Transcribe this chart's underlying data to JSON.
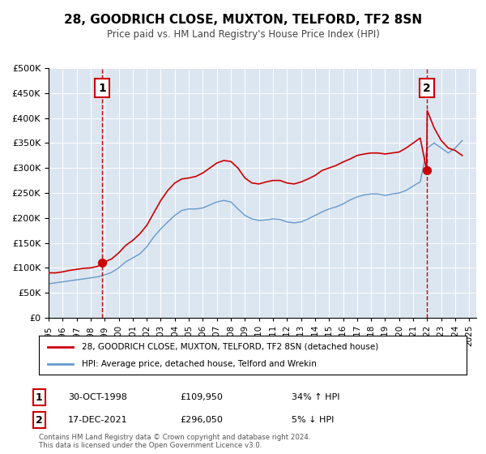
{
  "title": "28, GOODRICH CLOSE, MUXTON, TELFORD, TF2 8SN",
  "subtitle": "Price paid vs. HM Land Registry's House Price Index (HPI)",
  "legend_line1": "28, GOODRICH CLOSE, MUXTON, TELFORD, TF2 8SN (detached house)",
  "legend_line2": "HPI: Average price, detached house, Telford and Wrekin",
  "annotation1_label": "1",
  "annotation1_date": "30-OCT-1998",
  "annotation1_price": "£109,950",
  "annotation1_hpi": "34% ↑ HPI",
  "annotation2_label": "2",
  "annotation2_date": "17-DEC-2021",
  "annotation2_price": "£296,050",
  "annotation2_hpi": "5% ↓ HPI",
  "footer1": "Contains HM Land Registry data © Crown copyright and database right 2024.",
  "footer2": "This data is licensed under the Open Government Licence v3.0.",
  "ylim": [
    0,
    500000
  ],
  "yticks": [
    0,
    50000,
    100000,
    150000,
    200000,
    250000,
    300000,
    350000,
    400000,
    450000,
    500000
  ],
  "xlim_start": 1995.0,
  "xlim_end": 2025.5,
  "sale1_x": 1998.83,
  "sale1_y": 109950,
  "sale2_x": 2021.96,
  "sale2_y": 296050,
  "vline1_x": 1998.83,
  "vline2_x": 2021.96,
  "line_color_red": "#cc0000",
  "line_color_blue": "#6699cc",
  "vline_color": "#cc0000",
  "bg_color": "#dce6f1",
  "plot_bg": "#dce6f1",
  "box_color_red": "#cc0000",
  "annotation_box_color": "#cc0000",
  "hpi_red_x": [
    1995.0,
    1995.5,
    1996.0,
    1996.5,
    1997.0,
    1997.5,
    1998.0,
    1998.5,
    1998.83,
    1999.0,
    1999.5,
    2000.0,
    2000.5,
    2001.0,
    2001.5,
    2002.0,
    2002.5,
    2003.0,
    2003.5,
    2004.0,
    2004.5,
    2005.0,
    2005.5,
    2006.0,
    2006.5,
    2007.0,
    2007.5,
    2008.0,
    2008.5,
    2009.0,
    2009.5,
    2010.0,
    2010.5,
    2011.0,
    2011.5,
    2012.0,
    2012.5,
    2013.0,
    2013.5,
    2014.0,
    2014.5,
    2015.0,
    2015.5,
    2016.0,
    2016.5,
    2017.0,
    2017.5,
    2018.0,
    2018.5,
    2019.0,
    2019.5,
    2020.0,
    2020.5,
    2021.0,
    2021.5,
    2021.96,
    2022.0,
    2022.5,
    2023.0,
    2023.5,
    2024.0,
    2024.5
  ],
  "hpi_red_y": [
    90000,
    90000,
    92000,
    95000,
    97000,
    99000,
    100000,
    103000,
    109950,
    112000,
    118000,
    130000,
    145000,
    155000,
    168000,
    185000,
    210000,
    235000,
    255000,
    270000,
    278000,
    280000,
    283000,
    290000,
    300000,
    310000,
    315000,
    313000,
    300000,
    280000,
    270000,
    268000,
    272000,
    275000,
    275000,
    270000,
    268000,
    272000,
    278000,
    285000,
    295000,
    300000,
    305000,
    312000,
    318000,
    325000,
    328000,
    330000,
    330000,
    328000,
    330000,
    332000,
    340000,
    350000,
    360000,
    296050,
    415000,
    380000,
    355000,
    340000,
    335000,
    325000
  ],
  "hpi_blue_x": [
    1995.0,
    1995.5,
    1996.0,
    1996.5,
    1997.0,
    1997.5,
    1998.0,
    1998.5,
    1999.0,
    1999.5,
    2000.0,
    2000.5,
    2001.0,
    2001.5,
    2002.0,
    2002.5,
    2003.0,
    2003.5,
    2004.0,
    2004.5,
    2005.0,
    2005.5,
    2006.0,
    2006.5,
    2007.0,
    2007.5,
    2008.0,
    2008.5,
    2009.0,
    2009.5,
    2010.0,
    2010.5,
    2011.0,
    2011.5,
    2012.0,
    2012.5,
    2013.0,
    2013.5,
    2014.0,
    2014.5,
    2015.0,
    2015.5,
    2016.0,
    2016.5,
    2017.0,
    2017.5,
    2018.0,
    2018.5,
    2019.0,
    2019.5,
    2020.0,
    2020.5,
    2021.0,
    2021.5,
    2022.0,
    2022.5,
    2023.0,
    2023.5,
    2024.0,
    2024.5
  ],
  "hpi_blue_y": [
    68000,
    70000,
    72000,
    74000,
    76000,
    78000,
    80000,
    82000,
    86000,
    91000,
    100000,
    112000,
    120000,
    128000,
    142000,
    162000,
    178000,
    192000,
    205000,
    215000,
    218000,
    218000,
    220000,
    226000,
    232000,
    235000,
    232000,
    218000,
    205000,
    198000,
    195000,
    196000,
    198000,
    197000,
    192000,
    190000,
    192000,
    198000,
    205000,
    212000,
    218000,
    222000,
    228000,
    236000,
    242000,
    246000,
    248000,
    248000,
    245000,
    248000,
    250000,
    255000,
    264000,
    272000,
    340000,
    350000,
    340000,
    330000,
    340000,
    355000
  ]
}
